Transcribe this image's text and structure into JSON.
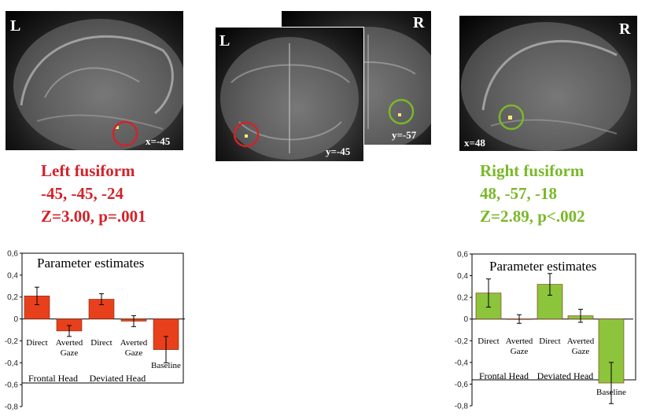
{
  "panels": {
    "left_sagittal": {
      "corner": "L",
      "coord": "x=-45",
      "circle_color": "#d2232a"
    },
    "left_coronal": {
      "corner": "L",
      "coord": "y=-45",
      "circle_color": "#d2232a"
    },
    "right_coronal": {
      "corner": "R",
      "coord": "y=-57",
      "circle_color": "#7ab828"
    },
    "right_sagittal": {
      "corner": "R",
      "coord": "x=48",
      "circle_color": "#7ab828"
    }
  },
  "left_result": {
    "region": "Left fusiform",
    "coords": "-45, -45, -24",
    "stats": "Z=3.00, p=.001",
    "color": "#d2232a"
  },
  "right_result": {
    "region": "Right fusiform",
    "coords": "48, -57, -18",
    "stats": "Z=2.89, p<.002",
    "color": "#7ab828"
  },
  "chart_data": [
    {
      "type": "bar",
      "title": "Parameter estimates",
      "ylim": [
        -0.8,
        0.6
      ],
      "yticks": [
        "0,6",
        "0,4",
        "0,2",
        "0",
        "-0,2",
        "-0,4",
        "-0,6",
        "-0,8"
      ],
      "bar_color": "#e8401c",
      "categories": [
        "Direct",
        "Averted Gaze",
        "Direct",
        "Averted Gaze",
        "Baseline"
      ],
      "values": [
        0.21,
        -0.11,
        0.18,
        -0.02,
        -0.28
      ],
      "errors": [
        0.08,
        0.05,
        0.05,
        0.05,
        0.12
      ],
      "groups": [
        "Frontal Head",
        "Deviated Head"
      ]
    },
    {
      "type": "bar",
      "title": "Parameter estimates",
      "ylim": [
        -0.8,
        0.6
      ],
      "yticks": [
        "0,6",
        "0,4",
        "0,2",
        "0",
        "-0,2",
        "-0,4",
        "-0,6",
        "-0,8"
      ],
      "bar_color": "#8cc43c",
      "categories": [
        "Direct",
        "Averted Gaze",
        "Direct",
        "Averted Gaze",
        "Baseline"
      ],
      "values": [
        0.24,
        0.0,
        0.32,
        0.03,
        -0.59
      ],
      "errors": [
        0.13,
        0.04,
        0.1,
        0.06,
        0.19
      ],
      "groups": [
        "Frontal Head",
        "Deviated Head"
      ]
    }
  ]
}
